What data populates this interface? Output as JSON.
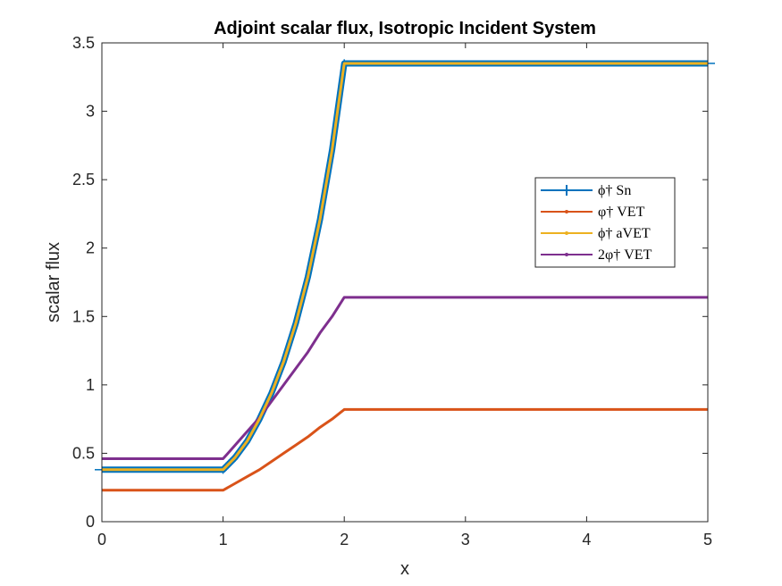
{
  "chart_data": {
    "type": "line",
    "title": "Adjoint scalar flux, Isotropic Incident System",
    "xlabel": "x",
    "ylabel": "scalar flux",
    "xlim": [
      0,
      5
    ],
    "ylim": [
      0,
      3.5
    ],
    "xticks": [
      "0",
      "1",
      "2",
      "3",
      "4",
      "5"
    ],
    "yticks": [
      "0",
      "0.5",
      "1",
      "1.5",
      "2",
      "2.5",
      "3",
      "3.5"
    ],
    "grid": false,
    "legend_position": "right",
    "legend": [
      "ϕ† Sn",
      "φ† VET",
      "ϕ† aVET",
      "2φ† VET"
    ],
    "series": [
      {
        "name": "ϕ† Sn",
        "color": "#0072BD",
        "x": [
          0,
          1,
          1.1,
          1.2,
          1.3,
          1.4,
          1.5,
          1.6,
          1.7,
          1.8,
          1.9,
          2,
          5
        ],
        "y": [
          0.38,
          0.38,
          0.47,
          0.59,
          0.75,
          0.94,
          1.17,
          1.45,
          1.79,
          2.21,
          2.72,
          3.35,
          3.35
        ],
        "error_bar": 0.03
      },
      {
        "name": "φ† VET",
        "color": "#D95319",
        "x": [
          0,
          1,
          1.1,
          1.2,
          1.3,
          1.4,
          1.5,
          1.6,
          1.7,
          1.8,
          1.9,
          2,
          5
        ],
        "y": [
          0.23,
          0.23,
          0.28,
          0.33,
          0.38,
          0.44,
          0.5,
          0.56,
          0.62,
          0.69,
          0.75,
          0.82,
          0.82
        ]
      },
      {
        "name": "ϕ† aVET",
        "color": "#EDB120",
        "x": [
          0,
          1,
          1.1,
          1.2,
          1.3,
          1.4,
          1.5,
          1.6,
          1.7,
          1.8,
          1.9,
          2,
          5
        ],
        "y": [
          0.38,
          0.38,
          0.47,
          0.59,
          0.75,
          0.94,
          1.17,
          1.45,
          1.79,
          2.21,
          2.72,
          3.35,
          3.35
        ]
      },
      {
        "name": "2φ† VET",
        "color": "#7E2F8E",
        "x": [
          0,
          1,
          1.1,
          1.2,
          1.3,
          1.4,
          1.5,
          1.6,
          1.7,
          1.8,
          1.9,
          2,
          5
        ],
        "y": [
          0.46,
          0.46,
          0.56,
          0.66,
          0.76,
          0.88,
          1.0,
          1.12,
          1.24,
          1.38,
          1.5,
          1.64,
          1.64
        ]
      }
    ]
  }
}
